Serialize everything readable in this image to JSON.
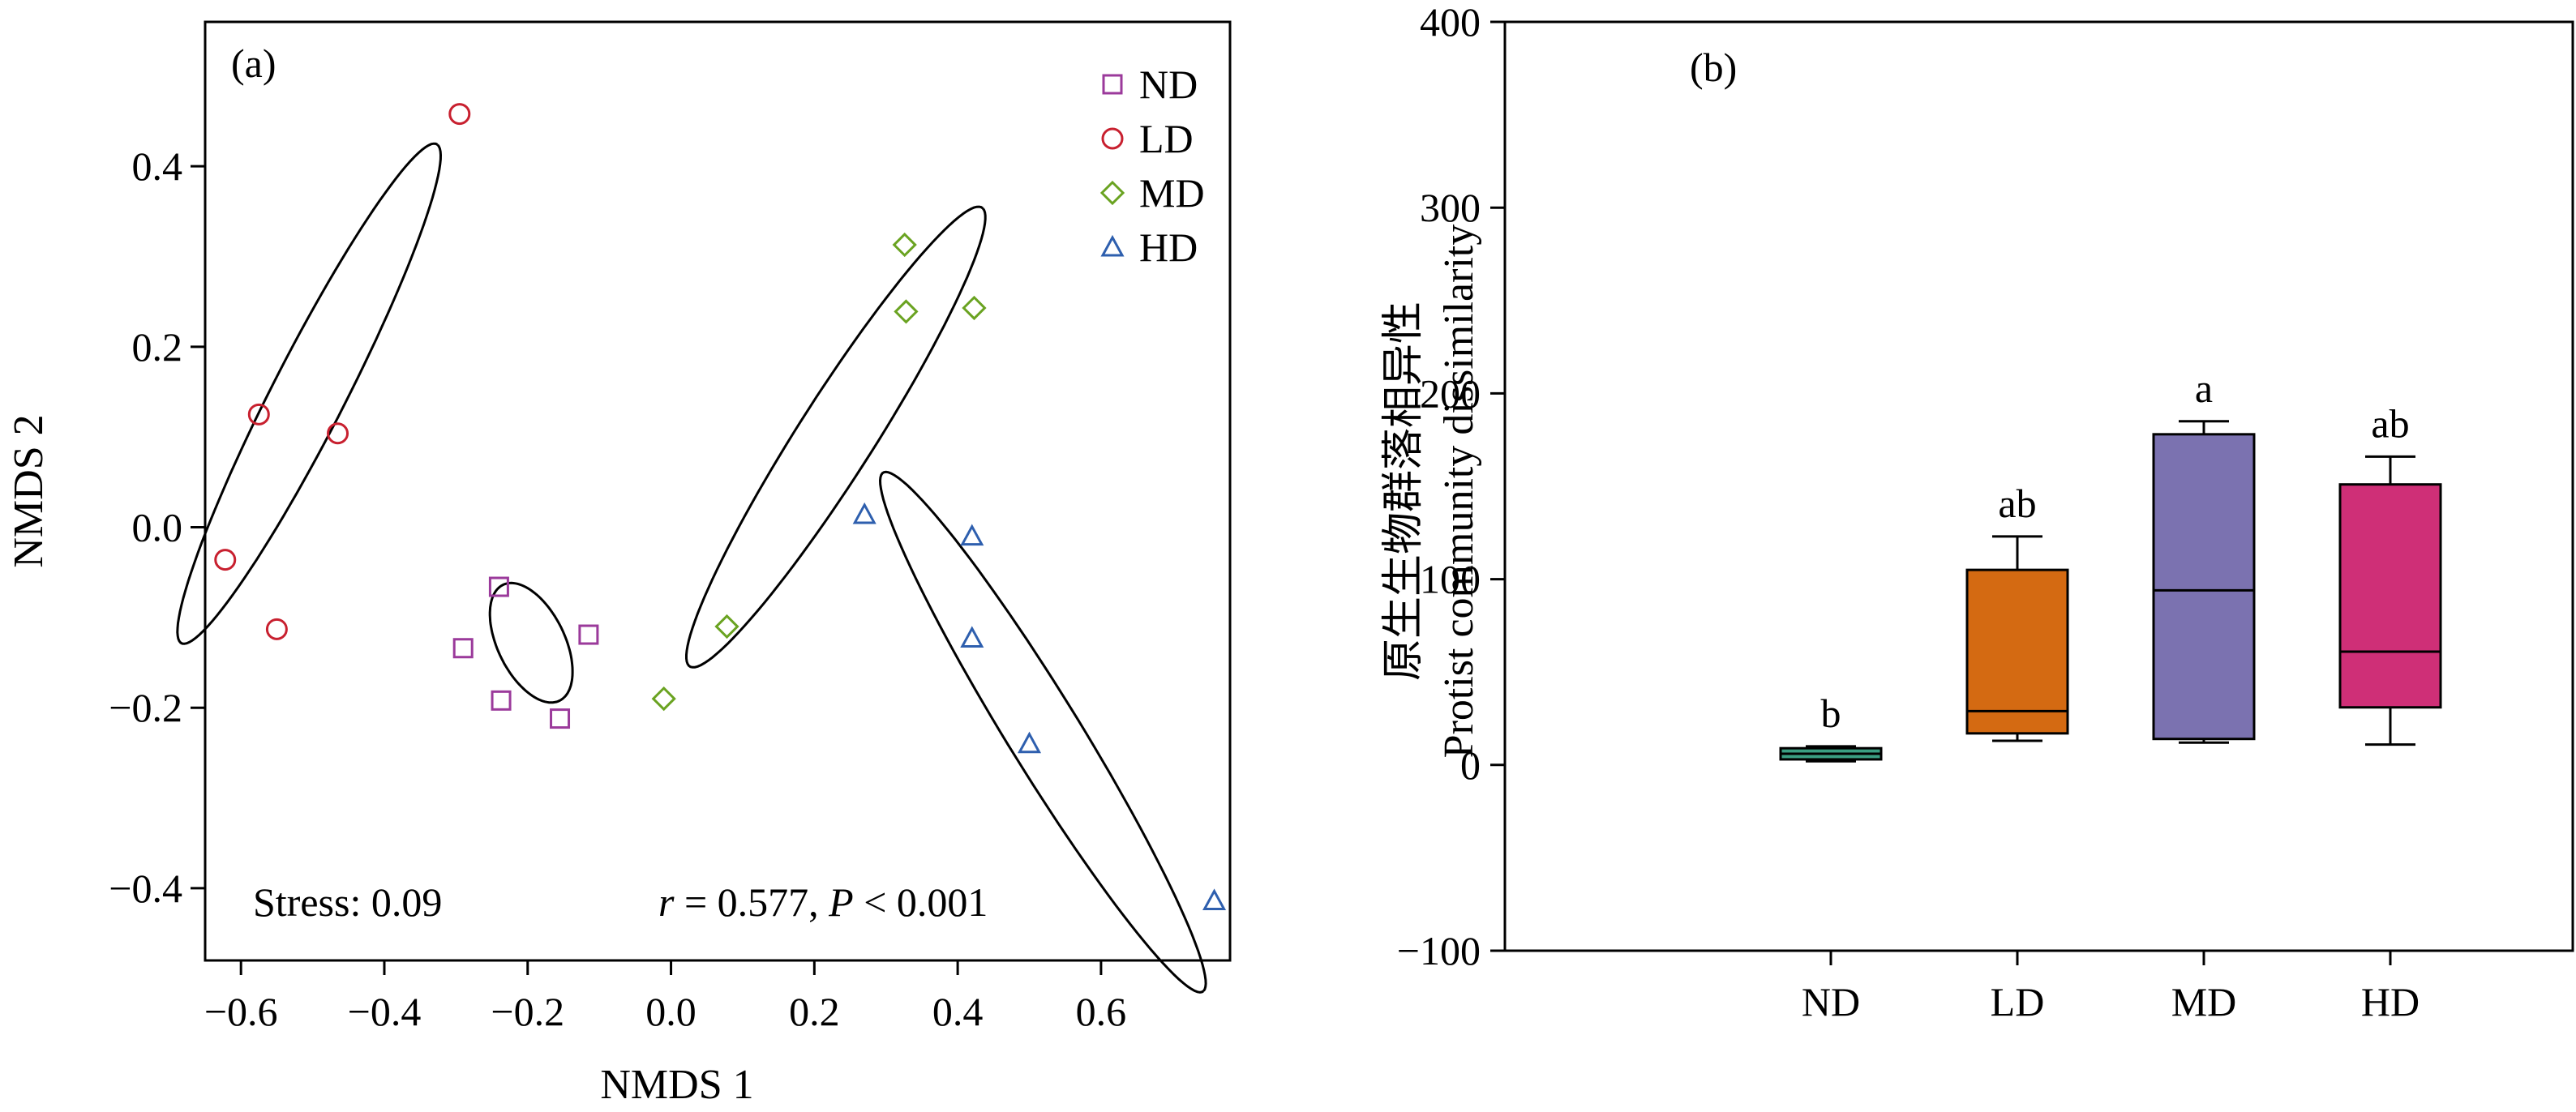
{
  "chart_data": [
    {
      "type": "scatter",
      "panel_label": "(a)",
      "xlabel": "NMDS 1",
      "ylabel": "NMDS 2",
      "xlim": [
        -0.65,
        0.78
      ],
      "ylim": [
        -0.48,
        0.56
      ],
      "xticks": [
        "−0.6",
        "−0.4",
        "−0.2",
        "0.0",
        "0.2",
        "0.4",
        "0.6"
      ],
      "xtick_values": [
        -0.6,
        -0.4,
        -0.2,
        0.0,
        0.2,
        0.4,
        0.6
      ],
      "yticks": [
        "−0.4",
        "−0.2",
        "0.0",
        "0.2",
        "0.4"
      ],
      "ytick_values": [
        -0.4,
        -0.2,
        0.0,
        0.2,
        0.4
      ],
      "stress_text": "Stress: 0.09",
      "stat_r": "r",
      "stat_mid": " = 0.577, ",
      "stat_p": "P",
      "stat_end": " < 0.001",
      "legend_position": "top-right",
      "series": [
        {
          "name": "ND",
          "marker": "square",
          "color": "#9b3a9b",
          "points": [
            [
              -0.29,
              -0.134
            ],
            [
              -0.24,
              -0.066
            ],
            [
              -0.237,
              -0.192
            ],
            [
              -0.155,
              -0.212
            ],
            [
              -0.115,
              -0.119
            ]
          ],
          "ellipse": {
            "cx": -0.195,
            "cy": -0.128,
            "rx": 0.076,
            "ry": 0.044,
            "angle_deg": -53
          }
        },
        {
          "name": "LD",
          "marker": "circle",
          "color": "#c8202f",
          "points": [
            [
              -0.295,
              0.458
            ],
            [
              -0.575,
              0.125
            ],
            [
              -0.465,
              0.104
            ],
            [
              -0.622,
              -0.036
            ],
            [
              -0.55,
              -0.113
            ]
          ],
          "ellipse": {
            "cx": -0.505,
            "cy": 0.148,
            "rx": 0.329,
            "ry": 0.048,
            "angle_deg": 57
          }
        },
        {
          "name": "MD",
          "marker": "diamond",
          "color": "#6aa321",
          "points": [
            [
              0.326,
              0.313
            ],
            [
              0.328,
              0.239
            ],
            [
              0.423,
              0.243
            ],
            [
              0.078,
              -0.11
            ],
            [
              -0.01,
              -0.19
            ]
          ],
          "ellipse": {
            "cx": 0.23,
            "cy": 0.1,
            "rx": 0.326,
            "ry": 0.049,
            "angle_deg": 51
          }
        },
        {
          "name": "HD",
          "marker": "triangle",
          "color": "#2e5fae",
          "points": [
            [
              0.27,
              0.014
            ],
            [
              0.42,
              -0.01
            ],
            [
              0.42,
              -0.123
            ],
            [
              0.5,
              -0.24
            ],
            [
              0.758,
              -0.414
            ]
          ],
          "ellipse": {
            "cx": 0.519,
            "cy": -0.227,
            "rx": 0.364,
            "ry": 0.047,
            "angle_deg": -52
          }
        }
      ]
    },
    {
      "type": "box",
      "panel_label": "(b)",
      "ylabel_cn": "原生生物群落相异性",
      "ylabel": "Protist community dissimilarity",
      "ylim": [
        -100,
        400
      ],
      "yticks": [
        "400",
        "300",
        "200",
        "100",
        "0",
        "−100"
      ],
      "ytick_values": [
        400,
        300,
        200,
        100,
        0,
        -100
      ],
      "categories": [
        "ND",
        "LD",
        "MD",
        "HD"
      ],
      "boxes": [
        {
          "category": "ND",
          "color": "#3a9e82",
          "whisker_low": 2,
          "q1": 3,
          "median": 6,
          "q3": 9,
          "whisker_high": 10,
          "letter": "b"
        },
        {
          "category": "LD",
          "color": "#d46a12",
          "whisker_low": 13,
          "q1": 17,
          "median": 29,
          "q3": 105,
          "whisker_high": 123,
          "letter": "ab"
        },
        {
          "category": "MD",
          "color": "#7b72b0",
          "whisker_low": 12,
          "q1": 14,
          "median": 94,
          "q3": 178,
          "whisker_high": 185,
          "letter": "a"
        },
        {
          "category": "HD",
          "color": "#cf2f77",
          "whisker_low": 11,
          "q1": 31,
          "median": 61,
          "q3": 151,
          "whisker_high": 166,
          "letter": "ab"
        }
      ]
    }
  ]
}
